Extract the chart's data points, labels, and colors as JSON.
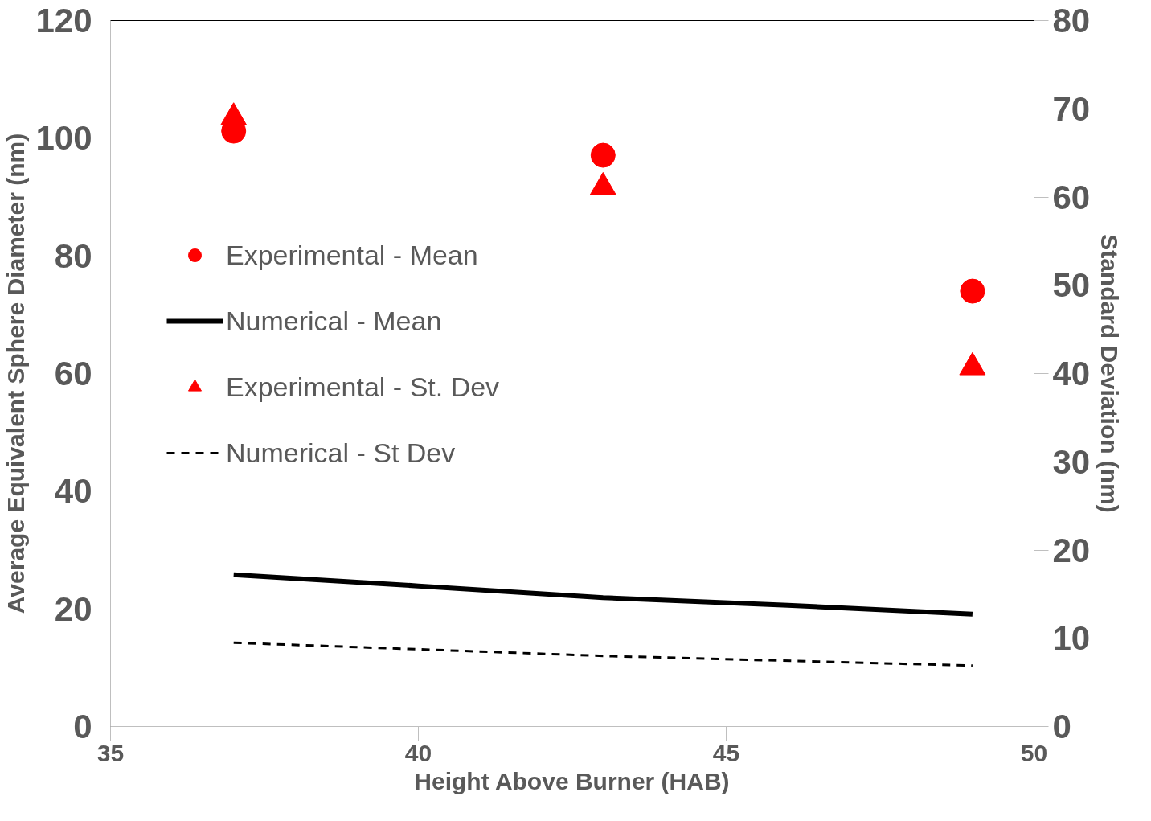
{
  "chart_data": {
    "type": "line",
    "xlabel": "Height Above Burner (HAB)",
    "ylabel": "Average Equivalent Sphere Diameter (nm)",
    "y2label": "Standard Deviation (nm)",
    "xlim": [
      35,
      50
    ],
    "xticks": [
      35,
      40,
      45,
      50
    ],
    "ylim": [
      0,
      120
    ],
    "yticks": [
      0,
      20,
      40,
      60,
      80,
      100,
      120
    ],
    "y2lim": [
      0,
      80
    ],
    "y2ticks": [
      0,
      10,
      20,
      30,
      40,
      50,
      60,
      70,
      80
    ],
    "grid": false,
    "legend": "left",
    "series": [
      {
        "name": "Experimental - Mean",
        "type": "scatter",
        "marker": "circle",
        "color": "#ff0000",
        "x": [
          37,
          43,
          49
        ],
        "values": [
          101.2,
          97.1,
          74.0
        ]
      },
      {
        "name": "Numerical - Mean",
        "marker": "none",
        "line_style": "solid",
        "color": "#000000",
        "x": [
          37,
          40,
          43,
          46,
          49
        ],
        "values": [
          25.8,
          23.9,
          21.9,
          20.6,
          19.1
        ]
      },
      {
        "name": "Experimental - St. Dev",
        "type": "scatter",
        "marker": "triangle",
        "color": "#ff0000",
        "axis": "y2",
        "x": [
          37,
          43,
          49
        ],
        "values": [
          69.0,
          61.1,
          40.7
        ]
      },
      {
        "name": "Numerical - St Dev",
        "marker": "none",
        "line_style": "dashed",
        "color": "#000000",
        "axis": "y2",
        "x": [
          37,
          43,
          49
        ],
        "values": [
          9.5,
          8.0,
          6.9
        ]
      }
    ]
  }
}
